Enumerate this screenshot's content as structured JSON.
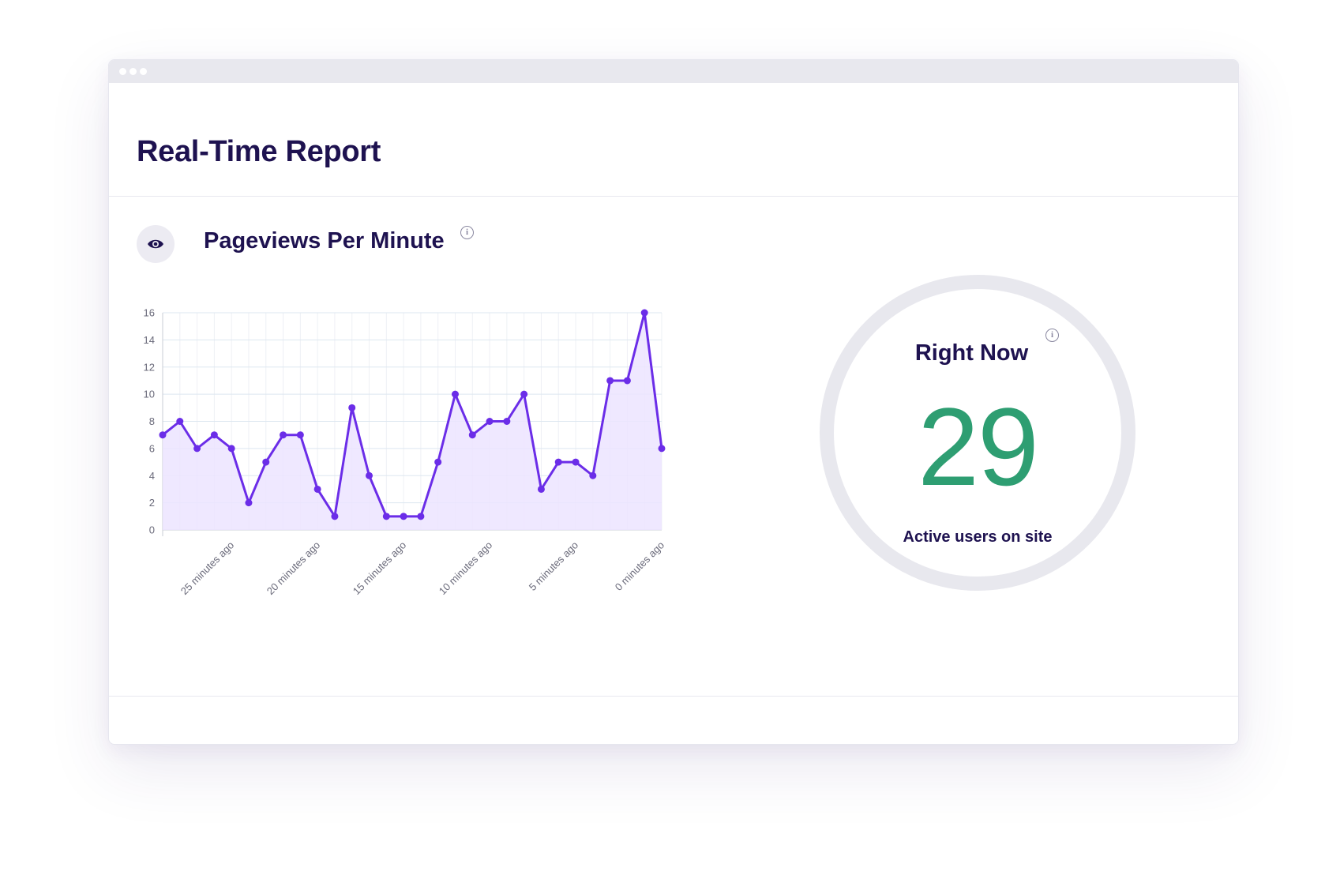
{
  "window": {
    "title": "Real-Time Report"
  },
  "pageviews": {
    "title": "Pageviews Per Minute",
    "icon": "eye-icon",
    "info_icon": "info-icon"
  },
  "right_now": {
    "title": "Right Now",
    "value": "29",
    "label": "Active users on site",
    "info_icon": "info-icon"
  },
  "colors": {
    "title": "#1e1250",
    "line": "#6b2de8",
    "fill": "#ece4ff",
    "number": "#2e9e72",
    "ring": "#e8e8ee"
  },
  "chart_data": {
    "type": "area",
    "x": [
      29,
      28,
      27,
      26,
      25,
      24,
      23,
      22,
      21,
      20,
      19,
      18,
      17,
      16,
      15,
      14,
      13,
      12,
      11,
      10,
      9,
      8,
      7,
      6,
      5,
      4,
      3,
      2,
      1,
      0
    ],
    "values": [
      7,
      8,
      6,
      7,
      6,
      2,
      5,
      7,
      7,
      3,
      1,
      9,
      4,
      1,
      1,
      1,
      5,
      10,
      7,
      8,
      8,
      10,
      3,
      5,
      5,
      4,
      11,
      11,
      16,
      6
    ],
    "x_tick_labels": [
      "25 minutes ago",
      "20 minutes ago",
      "15 minutes ago",
      "10 minutes ago",
      "5 minutes ago",
      "0 minutes ago"
    ],
    "x_tick_values": [
      25,
      20,
      15,
      10,
      5,
      0
    ],
    "y_ticks": [
      0,
      2,
      4,
      6,
      8,
      10,
      12,
      14,
      16
    ],
    "ylim": [
      0,
      16
    ],
    "grid": true,
    "legend": "none",
    "title": "",
    "xlabel": "",
    "ylabel": ""
  }
}
